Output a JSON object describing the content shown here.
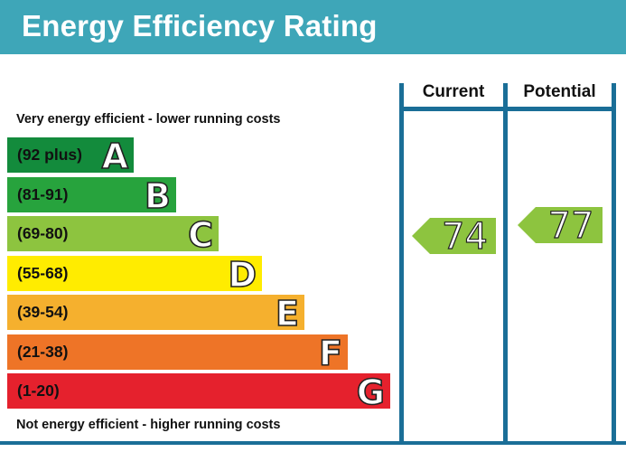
{
  "title": "Energy Efficiency Rating",
  "top_caption": "Very energy efficient - lower running costs",
  "bottom_caption": "Not energy efficient - higher running costs",
  "columns": {
    "current": "Current",
    "potential": "Potential"
  },
  "chart_data": {
    "type": "bar",
    "title": "Energy Efficiency Rating",
    "bands": [
      {
        "letter": "A",
        "range": "(92 plus)",
        "min": 92,
        "max": 100,
        "color": "#138b3c"
      },
      {
        "letter": "B",
        "range": "(81-91)",
        "min": 81,
        "max": 91,
        "color": "#27a33d"
      },
      {
        "letter": "C",
        "range": "(69-80)",
        "min": 69,
        "max": 80,
        "color": "#8dc43f"
      },
      {
        "letter": "D",
        "range": "(55-68)",
        "min": 55,
        "max": 68,
        "color": "#ffec00"
      },
      {
        "letter": "E",
        "range": "(39-54)",
        "min": 39,
        "max": 54,
        "color": "#f5b02e"
      },
      {
        "letter": "F",
        "range": "(21-38)",
        "min": 21,
        "max": 38,
        "color": "#ee7427"
      },
      {
        "letter": "G",
        "range": "(1-20)",
        "min": 1,
        "max": 20,
        "color": "#e5212d"
      }
    ],
    "current": {
      "value": 74,
      "band": "C",
      "color": "#8dc43f"
    },
    "potential": {
      "value": 77,
      "band": "C",
      "color": "#8dc43f"
    }
  }
}
